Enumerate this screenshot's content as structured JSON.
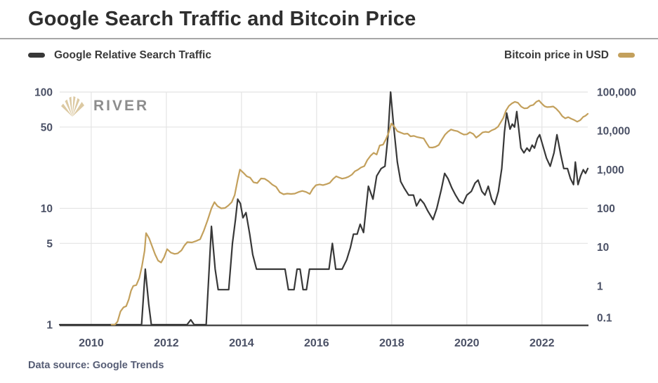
{
  "page": {
    "title": "Google Search Traffic and Bitcoin Price",
    "footer": "Data source: Google Trends",
    "watermark": "RIVER"
  },
  "legend": {
    "left": {
      "label": "Google Relative Search Traffic",
      "color": "#383838"
    },
    "right": {
      "label": "Bitcoin price in USD",
      "color": "#c3a05c"
    }
  },
  "colors": {
    "search_line": "#383838",
    "bitcoin_line": "#c3a05c",
    "gridline": "#e4e4e4",
    "baseline": "#4a4a4a",
    "tick_label": "#4b5166",
    "title_text": "#2e2e2e",
    "footer_text": "#565d75",
    "watermark_text": "#8d8d8d",
    "watermark_icon": "#dcc9a2"
  },
  "chart_data": {
    "type": "line",
    "title": "Google Search Traffic and Bitcoin Price",
    "grid": true,
    "layout": {
      "x0": 85,
      "x1": 837,
      "y_top": 131,
      "y_bottom": 462
    },
    "x_range": [
      2009.16,
      2023.22
    ],
    "x_ticks": [
      {
        "value": 2010,
        "label": "2010"
      },
      {
        "value": 2012,
        "label": "2012"
      },
      {
        "value": 2014,
        "label": "2014"
      },
      {
        "value": 2016,
        "label": "2016"
      },
      {
        "value": 2018,
        "label": "2018"
      },
      {
        "value": 2020,
        "label": "2020"
      },
      {
        "value": 2022,
        "label": "2022"
      }
    ],
    "left_axis": {
      "scale": "log",
      "range": [
        1,
        100
      ],
      "ticks": [
        {
          "value": 100,
          "label": "100",
          "grid": true
        },
        {
          "value": 50,
          "label": "50",
          "grid": true
        },
        {
          "value": 10,
          "label": "10",
          "grid": true
        },
        {
          "value": 5,
          "label": "5",
          "grid": true
        },
        {
          "value": 1,
          "label": "1",
          "grid": false
        }
      ]
    },
    "right_axis": {
      "scale": "log",
      "range": [
        0.1,
        100000
      ],
      "ticks": [
        {
          "value": 100000,
          "label": "100,000"
        },
        {
          "value": 10000,
          "label": "10,000"
        },
        {
          "value": 1000,
          "label": "1,000"
        },
        {
          "value": 100,
          "label": "100"
        },
        {
          "value": 10,
          "label": "10"
        },
        {
          "value": 1,
          "label": "1"
        },
        {
          "value": 0.1,
          "label": "0.1"
        }
      ]
    },
    "series": [
      {
        "name": "Google Relative Search Traffic",
        "axis": "left",
        "color": "#383838",
        "points": [
          [
            2009.16,
            1
          ],
          [
            2010.2,
            1
          ],
          [
            2011.0,
            1
          ],
          [
            2011.34,
            1
          ],
          [
            2011.44,
            3
          ],
          [
            2011.53,
            1.5
          ],
          [
            2011.6,
            1
          ],
          [
            2012.0,
            1
          ],
          [
            2012.55,
            1
          ],
          [
            2012.65,
            1.1
          ],
          [
            2012.74,
            1
          ],
          [
            2013.06,
            1
          ],
          [
            2013.2,
            7
          ],
          [
            2013.3,
            3
          ],
          [
            2013.38,
            2
          ],
          [
            2013.5,
            2
          ],
          [
            2013.66,
            2
          ],
          [
            2013.76,
            5
          ],
          [
            2013.84,
            8
          ],
          [
            2013.9,
            12
          ],
          [
            2013.97,
            11
          ],
          [
            2014.04,
            8.3
          ],
          [
            2014.12,
            9.2
          ],
          [
            2014.22,
            6
          ],
          [
            2014.3,
            4
          ],
          [
            2014.4,
            3
          ],
          [
            2014.7,
            3
          ],
          [
            2015.0,
            3
          ],
          [
            2015.16,
            3
          ],
          [
            2015.25,
            2
          ],
          [
            2015.4,
            2
          ],
          [
            2015.48,
            3
          ],
          [
            2015.56,
            3
          ],
          [
            2015.64,
            2
          ],
          [
            2015.73,
            2
          ],
          [
            2015.81,
            3
          ],
          [
            2016.1,
            3
          ],
          [
            2016.33,
            3
          ],
          [
            2016.42,
            5
          ],
          [
            2016.51,
            3
          ],
          [
            2016.68,
            3
          ],
          [
            2016.8,
            3.6
          ],
          [
            2016.9,
            4.6
          ],
          [
            2016.98,
            6
          ],
          [
            2017.08,
            6
          ],
          [
            2017.16,
            7.3
          ],
          [
            2017.25,
            6.2
          ],
          [
            2017.38,
            15.5
          ],
          [
            2017.5,
            12
          ],
          [
            2017.6,
            19
          ],
          [
            2017.72,
            22
          ],
          [
            2017.82,
            23
          ],
          [
            2017.9,
            42
          ],
          [
            2017.97,
            100
          ],
          [
            2018.06,
            48
          ],
          [
            2018.15,
            25
          ],
          [
            2018.24,
            17
          ],
          [
            2018.33,
            15
          ],
          [
            2018.45,
            13
          ],
          [
            2018.58,
            13
          ],
          [
            2018.66,
            10.5
          ],
          [
            2018.76,
            12
          ],
          [
            2018.86,
            11
          ],
          [
            2018.96,
            9.5
          ],
          [
            2019.1,
            8
          ],
          [
            2019.2,
            10
          ],
          [
            2019.32,
            14.5
          ],
          [
            2019.41,
            20
          ],
          [
            2019.5,
            18
          ],
          [
            2019.6,
            15
          ],
          [
            2019.7,
            13
          ],
          [
            2019.8,
            11.5
          ],
          [
            2019.9,
            11
          ],
          [
            2020.0,
            13
          ],
          [
            2020.12,
            14
          ],
          [
            2020.22,
            16.5
          ],
          [
            2020.3,
            17.5
          ],
          [
            2020.4,
            14
          ],
          [
            2020.48,
            13
          ],
          [
            2020.57,
            15.5
          ],
          [
            2020.66,
            12
          ],
          [
            2020.74,
            10.8
          ],
          [
            2020.84,
            14
          ],
          [
            2020.93,
            22
          ],
          [
            2021.0,
            45
          ],
          [
            2021.06,
            66
          ],
          [
            2021.15,
            48
          ],
          [
            2021.21,
            53
          ],
          [
            2021.27,
            50
          ],
          [
            2021.33,
            68
          ],
          [
            2021.44,
            33
          ],
          [
            2021.52,
            30
          ],
          [
            2021.6,
            33
          ],
          [
            2021.67,
            31
          ],
          [
            2021.74,
            35
          ],
          [
            2021.8,
            33
          ],
          [
            2021.88,
            40
          ],
          [
            2021.94,
            43
          ],
          [
            2022.02,
            35
          ],
          [
            2022.12,
            27
          ],
          [
            2022.22,
            23
          ],
          [
            2022.32,
            30
          ],
          [
            2022.4,
            43
          ],
          [
            2022.5,
            29
          ],
          [
            2022.58,
            22
          ],
          [
            2022.68,
            22
          ],
          [
            2022.76,
            18
          ],
          [
            2022.84,
            16
          ],
          [
            2022.89,
            25
          ],
          [
            2022.96,
            16
          ],
          [
            2023.03,
            19
          ],
          [
            2023.1,
            21.5
          ],
          [
            2023.16,
            20
          ],
          [
            2023.22,
            22
          ]
        ]
      },
      {
        "name": "Bitcoin price in USD",
        "axis": "right",
        "color": "#c3a05c",
        "points": [
          [
            2010.54,
            0.1
          ],
          [
            2010.63,
            0.1
          ],
          [
            2010.7,
            0.12
          ],
          [
            2010.78,
            0.22
          ],
          [
            2010.86,
            0.28
          ],
          [
            2010.93,
            0.3
          ],
          [
            2011.0,
            0.45
          ],
          [
            2011.06,
            0.75
          ],
          [
            2011.12,
            1.0
          ],
          [
            2011.2,
            1.05
          ],
          [
            2011.28,
            1.6
          ],
          [
            2011.35,
            3.2
          ],
          [
            2011.42,
            8
          ],
          [
            2011.46,
            23
          ],
          [
            2011.54,
            17
          ],
          [
            2011.62,
            10.5
          ],
          [
            2011.7,
            6.5
          ],
          [
            2011.78,
            4.5
          ],
          [
            2011.86,
            4.0
          ],
          [
            2011.94,
            5.5
          ],
          [
            2012.02,
            8.9
          ],
          [
            2012.12,
            7.2
          ],
          [
            2012.22,
            6.7
          ],
          [
            2012.3,
            6.9
          ],
          [
            2012.4,
            8.2
          ],
          [
            2012.48,
            11
          ],
          [
            2012.56,
            13.5
          ],
          [
            2012.68,
            13.2
          ],
          [
            2012.8,
            14.5
          ],
          [
            2012.9,
            16
          ],
          [
            2013.0,
            27
          ],
          [
            2013.1,
            50
          ],
          [
            2013.2,
            100
          ],
          [
            2013.28,
            145
          ],
          [
            2013.36,
            115
          ],
          [
            2013.46,
            100
          ],
          [
            2013.56,
            102
          ],
          [
            2013.65,
            118
          ],
          [
            2013.74,
            145
          ],
          [
            2013.82,
            220
          ],
          [
            2013.9,
            550
          ],
          [
            2013.96,
            1000
          ],
          [
            2014.05,
            830
          ],
          [
            2014.14,
            670
          ],
          [
            2014.23,
            620
          ],
          [
            2014.32,
            470
          ],
          [
            2014.42,
            450
          ],
          [
            2014.52,
            590
          ],
          [
            2014.62,
            580
          ],
          [
            2014.72,
            500
          ],
          [
            2014.82,
            410
          ],
          [
            2014.92,
            360
          ],
          [
            2015.02,
            260
          ],
          [
            2015.12,
            230
          ],
          [
            2015.22,
            240
          ],
          [
            2015.32,
            235
          ],
          [
            2015.42,
            240
          ],
          [
            2015.52,
            265
          ],
          [
            2015.62,
            282
          ],
          [
            2015.72,
            265
          ],
          [
            2015.82,
            235
          ],
          [
            2015.9,
            320
          ],
          [
            2015.98,
            395
          ],
          [
            2016.08,
            415
          ],
          [
            2016.17,
            398
          ],
          [
            2016.26,
            420
          ],
          [
            2016.35,
            455
          ],
          [
            2016.44,
            575
          ],
          [
            2016.52,
            670
          ],
          [
            2016.6,
            625
          ],
          [
            2016.68,
            585
          ],
          [
            2016.77,
            610
          ],
          [
            2016.85,
            655
          ],
          [
            2016.94,
            740
          ],
          [
            2017.02,
            905
          ],
          [
            2017.1,
            995
          ],
          [
            2017.18,
            1130
          ],
          [
            2017.27,
            1230
          ],
          [
            2017.35,
            1750
          ],
          [
            2017.44,
            2300
          ],
          [
            2017.52,
            2700
          ],
          [
            2017.6,
            2450
          ],
          [
            2017.68,
            4200
          ],
          [
            2017.77,
            4400
          ],
          [
            2017.85,
            6200
          ],
          [
            2017.92,
            9000
          ],
          [
            2017.99,
            15500
          ],
          [
            2018.07,
            12800
          ],
          [
            2018.15,
            9800
          ],
          [
            2018.24,
            9000
          ],
          [
            2018.33,
            8300
          ],
          [
            2018.42,
            8500
          ],
          [
            2018.5,
            7200
          ],
          [
            2018.59,
            7400
          ],
          [
            2018.68,
            6900
          ],
          [
            2018.77,
            6600
          ],
          [
            2018.85,
            6400
          ],
          [
            2018.93,
            4800
          ],
          [
            2019.0,
            3750
          ],
          [
            2019.08,
            3700
          ],
          [
            2019.16,
            3850
          ],
          [
            2019.25,
            4300
          ],
          [
            2019.33,
            5800
          ],
          [
            2019.42,
            8000
          ],
          [
            2019.5,
            9500
          ],
          [
            2019.58,
            10800
          ],
          [
            2019.66,
            10200
          ],
          [
            2019.75,
            9800
          ],
          [
            2019.83,
            8800
          ],
          [
            2019.92,
            8000
          ],
          [
            2020.0,
            8100
          ],
          [
            2020.08,
            9200
          ],
          [
            2020.17,
            8300
          ],
          [
            2020.25,
            6700
          ],
          [
            2020.33,
            7600
          ],
          [
            2020.42,
            9100
          ],
          [
            2020.5,
            9400
          ],
          [
            2020.58,
            9200
          ],
          [
            2020.66,
            10300
          ],
          [
            2020.75,
            11200
          ],
          [
            2020.83,
            12800
          ],
          [
            2020.9,
            16500
          ],
          [
            2020.97,
            21500
          ],
          [
            2021.04,
            33000
          ],
          [
            2021.12,
            44000
          ],
          [
            2021.2,
            51000
          ],
          [
            2021.28,
            56000
          ],
          [
            2021.36,
            53000
          ],
          [
            2021.45,
            42000
          ],
          [
            2021.53,
            38000
          ],
          [
            2021.61,
            38500
          ],
          [
            2021.69,
            44500
          ],
          [
            2021.77,
            46500
          ],
          [
            2021.85,
            56000
          ],
          [
            2021.92,
            60500
          ],
          [
            2022.0,
            50000
          ],
          [
            2022.07,
            43000
          ],
          [
            2022.14,
            41000
          ],
          [
            2022.22,
            41500
          ],
          [
            2022.3,
            42500
          ],
          [
            2022.38,
            37000
          ],
          [
            2022.46,
            30500
          ],
          [
            2022.54,
            24000
          ],
          [
            2022.62,
            21000
          ],
          [
            2022.7,
            22500
          ],
          [
            2022.78,
            20500
          ],
          [
            2022.86,
            19000
          ],
          [
            2022.94,
            17200
          ],
          [
            2023.02,
            18800
          ],
          [
            2023.1,
            23000
          ],
          [
            2023.16,
            24500
          ],
          [
            2023.22,
            27500
          ]
        ]
      }
    ]
  }
}
